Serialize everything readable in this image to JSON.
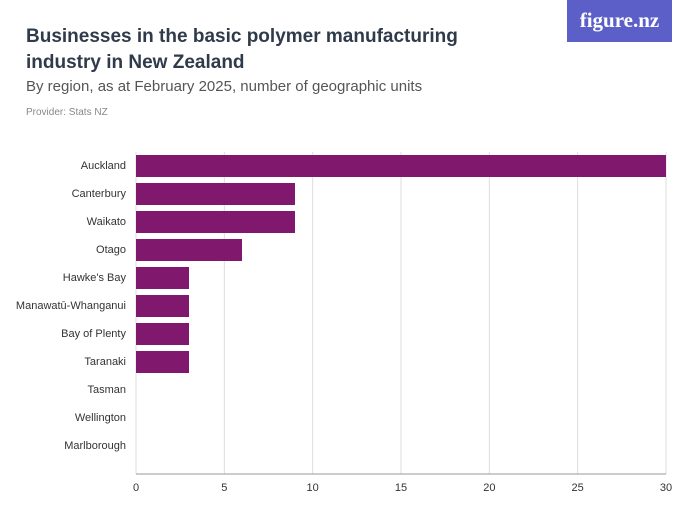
{
  "logo": "figure.nz",
  "chart_data": {
    "type": "bar",
    "orientation": "horizontal",
    "title": "Businesses in the basic polymer manufacturing industry in New Zealand",
    "subtitle": "By region, as at February 2025, number of geographic units",
    "source": "Provider: Stats NZ",
    "categories": [
      "Auckland",
      "Canterbury",
      "Waikato",
      "Otago",
      "Hawke's Bay",
      "Manawatū-Whanganui",
      "Bay of Plenty",
      "Taranaki",
      "Tasman",
      "Wellington",
      "Marlborough"
    ],
    "values": [
      30,
      9,
      9,
      6,
      3,
      3,
      3,
      3,
      0,
      0,
      0
    ],
    "color": "#80196e",
    "xlim": [
      0,
      30
    ],
    "xticks": [
      0,
      5,
      10,
      15,
      20,
      25,
      30
    ],
    "grid": true
  }
}
